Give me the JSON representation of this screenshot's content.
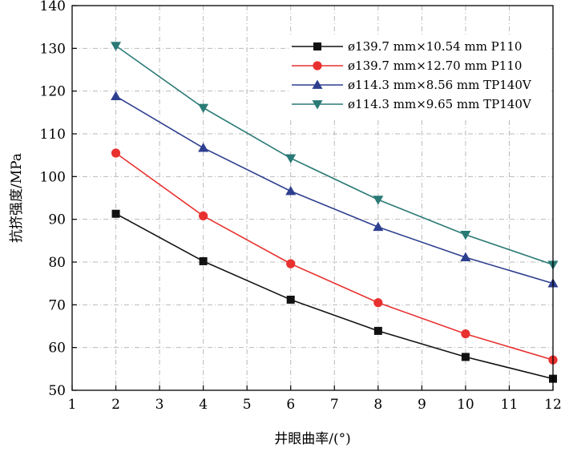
{
  "chart_data": {
    "type": "line",
    "title": "",
    "xlabel": "井眼曲率/(°)",
    "ylabel": "抗挤强度/MPa",
    "xlim": [
      1,
      12
    ],
    "ylim": [
      50,
      140
    ],
    "xticks": [
      1,
      2,
      3,
      4,
      5,
      6,
      7,
      8,
      9,
      10,
      11,
      12
    ],
    "yticks": [
      50,
      60,
      70,
      80,
      90,
      100,
      110,
      120,
      130,
      140
    ],
    "grid": true,
    "legend_position": "top-right",
    "x": [
      2,
      4,
      6,
      8,
      10,
      12
    ],
    "series": [
      {
        "name": "ø139.7 mm×10.54 mm P110",
        "color": "#111111",
        "marker": "square",
        "values": [
          91.3,
          80.2,
          71.2,
          63.9,
          57.8,
          52.7
        ]
      },
      {
        "name": "ø139.7 mm×12.70 mm P110",
        "color": "#e8312f",
        "marker": "circle",
        "values": [
          105.5,
          90.8,
          79.6,
          70.5,
          63.2,
          57.1
        ]
      },
      {
        "name": "ø114.3 mm×8.56 mm TP140V",
        "color": "#2e3f8f",
        "marker": "triangle-up",
        "values": [
          118.8,
          106.7,
          96.6,
          88.2,
          81.1,
          75.0
        ]
      },
      {
        "name": "ø114.3 mm×9.65 mm TP140V",
        "color": "#2a7a76",
        "marker": "triangle-down",
        "values": [
          130.6,
          116.1,
          104.3,
          94.6,
          86.4,
          79.4
        ]
      }
    ]
  }
}
